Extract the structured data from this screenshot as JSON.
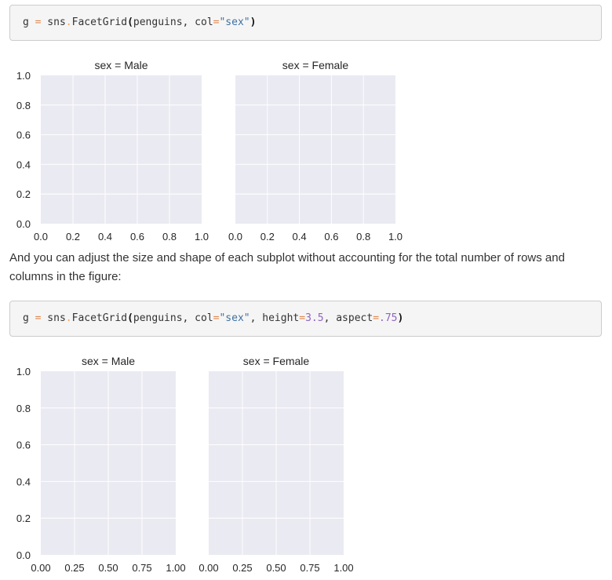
{
  "code_blocks": [
    {
      "tokens": [
        {
          "t": "g ",
          "c": ""
        },
        {
          "t": "=",
          "c": "tok-op eq"
        },
        {
          "t": " sns",
          "c": ""
        },
        {
          "t": ".",
          "c": "tok-op"
        },
        {
          "t": "FacetGrid",
          "c": ""
        },
        {
          "t": "(",
          "c": "tok-paren"
        },
        {
          "t": "penguins, col",
          "c": ""
        },
        {
          "t": "=",
          "c": "tok-op eq"
        },
        {
          "t": "\"sex\"",
          "c": "tok-str"
        },
        {
          "t": ")",
          "c": "tok-paren"
        }
      ]
    },
    {
      "tokens": [
        {
          "t": "g ",
          "c": ""
        },
        {
          "t": "=",
          "c": "tok-op eq"
        },
        {
          "t": " sns",
          "c": ""
        },
        {
          "t": ".",
          "c": "tok-op"
        },
        {
          "t": "FacetGrid",
          "c": ""
        },
        {
          "t": "(",
          "c": "tok-paren"
        },
        {
          "t": "penguins, col",
          "c": ""
        },
        {
          "t": "=",
          "c": "tok-op eq"
        },
        {
          "t": "\"sex\"",
          "c": "tok-str"
        },
        {
          "t": ", height",
          "c": ""
        },
        {
          "t": "=",
          "c": "tok-op eq"
        },
        {
          "t": "3.5",
          "c": "tok-num"
        },
        {
          "t": ", aspect",
          "c": ""
        },
        {
          "t": "=",
          "c": "tok-op eq"
        },
        {
          "t": ".75",
          "c": "tok-num"
        },
        {
          "t": ")",
          "c": "tok-paren"
        }
      ]
    }
  ],
  "prose": {
    "text": "And you can adjust the size and shape of each subplot without accounting for the total number of rows and columns in the figure:"
  },
  "chart_data": [
    {
      "type": "scatter",
      "facets": [
        {
          "title": "sex = Male",
          "xlim": [
            0,
            1
          ],
          "ylim": [
            0,
            1
          ],
          "xticks": [
            "0.0",
            "0.2",
            "0.4",
            "0.6",
            "0.8",
            "1.0"
          ],
          "yticks": [
            "0.0",
            "0.2",
            "0.4",
            "0.6",
            "0.8",
            "1.0"
          ],
          "series": []
        },
        {
          "title": "sex = Female",
          "xlim": [
            0,
            1
          ],
          "ylim": [
            0,
            1
          ],
          "xticks": [
            "0.0",
            "0.2",
            "0.4",
            "0.6",
            "0.8",
            "1.0"
          ],
          "yticks": [],
          "series": []
        }
      ],
      "grid": true,
      "background": "#eaeaf2",
      "gridcolor": "#ffffff"
    },
    {
      "type": "scatter",
      "facets": [
        {
          "title": "sex = Male",
          "xlim": [
            0,
            1
          ],
          "ylim": [
            0,
            1
          ],
          "xticks": [
            "0.00",
            "0.25",
            "0.50",
            "0.75",
            "1.00"
          ],
          "yticks": [
            "0.0",
            "0.2",
            "0.4",
            "0.6",
            "0.8",
            "1.0"
          ],
          "series": []
        },
        {
          "title": "sex = Female",
          "xlim": [
            0,
            1
          ],
          "ylim": [
            0,
            1
          ],
          "xticks": [
            "0.00",
            "0.25",
            "0.50",
            "0.75",
            "1.00"
          ],
          "yticks": [],
          "series": []
        }
      ],
      "grid": true,
      "background": "#eaeaf2",
      "gridcolor": "#ffffff"
    }
  ]
}
